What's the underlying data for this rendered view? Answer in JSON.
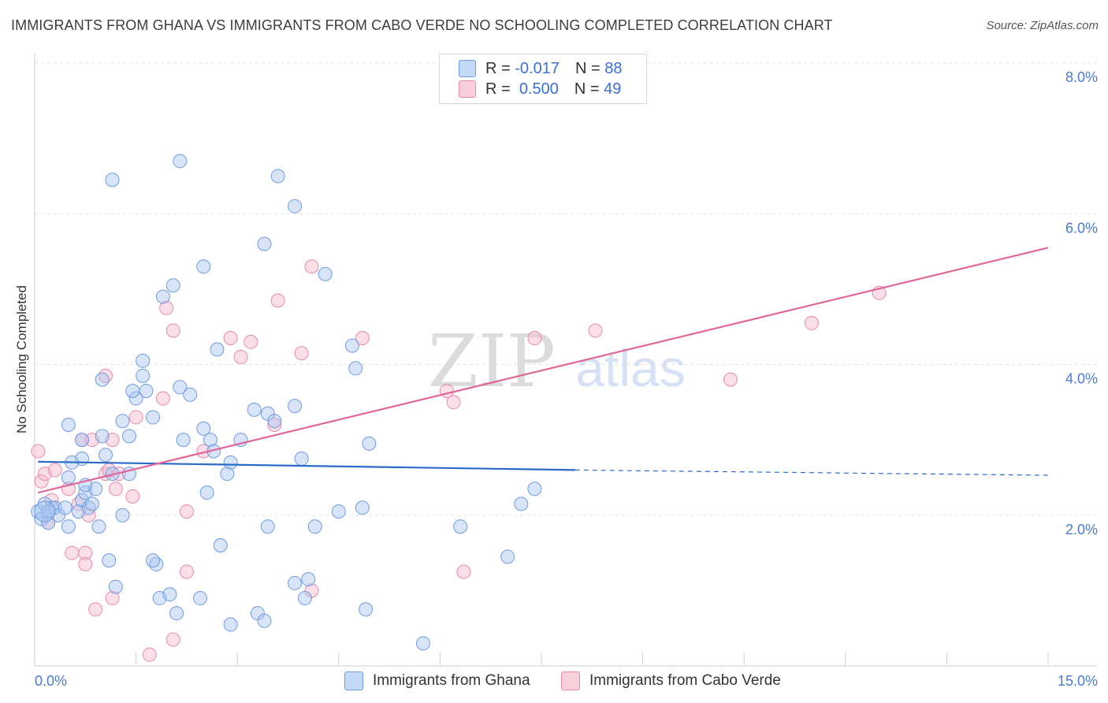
{
  "title": "IMMIGRANTS FROM GHANA VS IMMIGRANTS FROM CABO VERDE NO SCHOOLING COMPLETED CORRELATION CHART",
  "source": "Source: ZipAtlas.com",
  "watermark": {
    "zip": "ZIP",
    "atlas": "atlas"
  },
  "legend_top": {
    "rows": [
      {
        "r_label": "R =",
        "r_value": "-0.017",
        "n_label": "N =",
        "n_value": "88",
        "color": "#a8c4f0"
      },
      {
        "r_label": "R =",
        "r_value": "0.500",
        "n_label": "N =",
        "n_value": "49",
        "color": "#f5b8cb"
      }
    ]
  },
  "legend_bottom": {
    "ghana": "Immigrants from Ghana",
    "caboverde": "Immigrants from Cabo Verde"
  },
  "colors": {
    "ghana_fill": "#a8c4f0",
    "ghana_stroke": "#6f9be0",
    "ghana_line": "#2a6bc9",
    "cabo_fill": "#f5b8cb",
    "cabo_stroke": "#e88aa8",
    "cabo_line": "#e0679a",
    "tick_text": "#4a7bd0"
  },
  "chart_data": {
    "type": "scatter",
    "xlabel": "",
    "ylabel": "No Schooling Completed",
    "xlim": [
      0,
      15
    ],
    "ylim": [
      0,
      8
    ],
    "x_tick_labels": [
      "0.0%",
      "15.0%"
    ],
    "y_ticks": [
      2,
      4,
      6,
      8
    ],
    "y_tick_labels": [
      "2.0%",
      "4.0%",
      "6.0%",
      "8.0%"
    ],
    "grid": true,
    "legend_position": "top-center",
    "series": [
      {
        "name": "Immigrants from Ghana",
        "r": -0.017,
        "n": 88,
        "trend": {
          "x0": 0.05,
          "y0": 2.71,
          "x1": 8.0,
          "y1": 2.6,
          "x_dashed_end": 15.0,
          "y_dashed_end": 2.53
        },
        "points": [
          [
            0.25,
            2.1
          ],
          [
            0.05,
            2.05
          ],
          [
            0.1,
            1.95
          ],
          [
            0.15,
            2.15
          ],
          [
            0.2,
            1.9
          ],
          [
            0.3,
            2.1
          ],
          [
            0.35,
            2.0
          ],
          [
            0.45,
            2.1
          ],
          [
            0.5,
            1.85
          ],
          [
            0.65,
            2.05
          ],
          [
            0.7,
            2.2
          ],
          [
            0.75,
            2.3
          ],
          [
            0.8,
            2.1
          ],
          [
            0.9,
            2.35
          ],
          [
            0.5,
            2.5
          ],
          [
            0.75,
            2.4
          ],
          [
            0.7,
            2.75
          ],
          [
            1.05,
            2.8
          ],
          [
            1.15,
            2.55
          ],
          [
            1.3,
            2.0
          ],
          [
            1.4,
            2.55
          ],
          [
            0.7,
            3.0
          ],
          [
            1.0,
            3.05
          ],
          [
            1.4,
            3.05
          ],
          [
            1.3,
            3.25
          ],
          [
            1.75,
            3.3
          ],
          [
            1.65,
            3.65
          ],
          [
            1.5,
            3.55
          ],
          [
            1.45,
            3.65
          ],
          [
            2.2,
            3.0
          ],
          [
            2.15,
            3.7
          ],
          [
            2.3,
            3.6
          ],
          [
            2.5,
            3.15
          ],
          [
            2.6,
            3.0
          ],
          [
            2.65,
            2.85
          ],
          [
            2.55,
            2.3
          ],
          [
            2.85,
            2.55
          ],
          [
            2.9,
            2.7
          ],
          [
            3.05,
            3.0
          ],
          [
            3.25,
            3.4
          ],
          [
            3.45,
            3.35
          ],
          [
            3.55,
            3.25
          ],
          [
            3.85,
            3.45
          ],
          [
            3.95,
            2.75
          ],
          [
            4.95,
            2.95
          ],
          [
            4.7,
            4.25
          ],
          [
            4.75,
            3.95
          ],
          [
            4.3,
            5.2
          ],
          [
            3.4,
            5.6
          ],
          [
            3.85,
            6.1
          ],
          [
            3.6,
            6.5
          ],
          [
            2.15,
            6.7
          ],
          [
            1.15,
            6.45
          ],
          [
            2.5,
            5.3
          ],
          [
            2.05,
            5.05
          ],
          [
            1.9,
            4.9
          ],
          [
            2.7,
            4.2
          ],
          [
            1.6,
            3.85
          ],
          [
            1.6,
            4.05
          ],
          [
            1.0,
            3.8
          ],
          [
            0.5,
            3.2
          ],
          [
            0.55,
            2.7
          ],
          [
            0.85,
            2.15
          ],
          [
            0.95,
            1.85
          ],
          [
            0.2,
            2.05
          ],
          [
            1.8,
            1.35
          ],
          [
            1.75,
            1.4
          ],
          [
            1.1,
            1.4
          ],
          [
            1.2,
            1.05
          ],
          [
            1.85,
            0.9
          ],
          [
            2.0,
            0.95
          ],
          [
            2.1,
            0.7
          ],
          [
            2.45,
            0.9
          ],
          [
            2.75,
            1.6
          ],
          [
            2.9,
            0.55
          ],
          [
            3.3,
            0.7
          ],
          [
            3.4,
            0.6
          ],
          [
            3.45,
            1.85
          ],
          [
            3.85,
            1.1
          ],
          [
            4.0,
            0.9
          ],
          [
            4.05,
            1.15
          ],
          [
            4.15,
            1.85
          ],
          [
            4.5,
            2.05
          ],
          [
            4.85,
            2.1
          ],
          [
            4.9,
            0.75
          ],
          [
            5.75,
            0.3
          ],
          [
            6.3,
            1.85
          ],
          [
            7.0,
            1.45
          ],
          [
            7.2,
            2.15
          ],
          [
            7.4,
            2.35
          ]
        ]
      },
      {
        "name": "Immigrants from Cabo Verde",
        "r": 0.5,
        "n": 49,
        "trend": {
          "x0": 0.05,
          "y0": 2.3,
          "x1": 15.0,
          "y1": 5.55
        },
        "points": [
          [
            0.05,
            2.85
          ],
          [
            0.1,
            2.45
          ],
          [
            0.15,
            2.55
          ],
          [
            0.25,
            2.2
          ],
          [
            0.3,
            2.6
          ],
          [
            0.5,
            2.35
          ],
          [
            0.65,
            2.15
          ],
          [
            0.7,
            3.0
          ],
          [
            0.8,
            2.0
          ],
          [
            1.05,
            2.55
          ],
          [
            1.1,
            2.6
          ],
          [
            1.25,
            2.55
          ],
          [
            1.45,
            2.25
          ],
          [
            1.5,
            3.3
          ],
          [
            0.85,
            3.0
          ],
          [
            1.15,
            3.0
          ],
          [
            1.05,
            3.85
          ],
          [
            1.9,
            3.55
          ],
          [
            1.95,
            4.75
          ],
          [
            2.05,
            4.45
          ],
          [
            2.5,
            2.85
          ],
          [
            2.9,
            4.35
          ],
          [
            3.05,
            4.1
          ],
          [
            3.2,
            4.3
          ],
          [
            3.55,
            3.2
          ],
          [
            3.6,
            4.85
          ],
          [
            3.95,
            4.15
          ],
          [
            4.1,
            5.3
          ],
          [
            4.85,
            4.35
          ],
          [
            6.1,
            3.65
          ],
          [
            6.2,
            3.5
          ],
          [
            6.35,
            1.25
          ],
          [
            7.4,
            4.35
          ],
          [
            8.3,
            4.45
          ],
          [
            10.3,
            3.8
          ],
          [
            11.5,
            4.55
          ],
          [
            12.5,
            4.95
          ],
          [
            0.2,
            1.9
          ],
          [
            0.55,
            1.5
          ],
          [
            0.75,
            1.5
          ],
          [
            0.75,
            1.35
          ],
          [
            0.9,
            0.75
          ],
          [
            1.15,
            0.9
          ],
          [
            1.2,
            2.35
          ],
          [
            2.25,
            1.25
          ],
          [
            2.25,
            2.05
          ],
          [
            2.05,
            0.35
          ],
          [
            1.7,
            0.15
          ],
          [
            4.1,
            1.0
          ]
        ]
      }
    ]
  }
}
